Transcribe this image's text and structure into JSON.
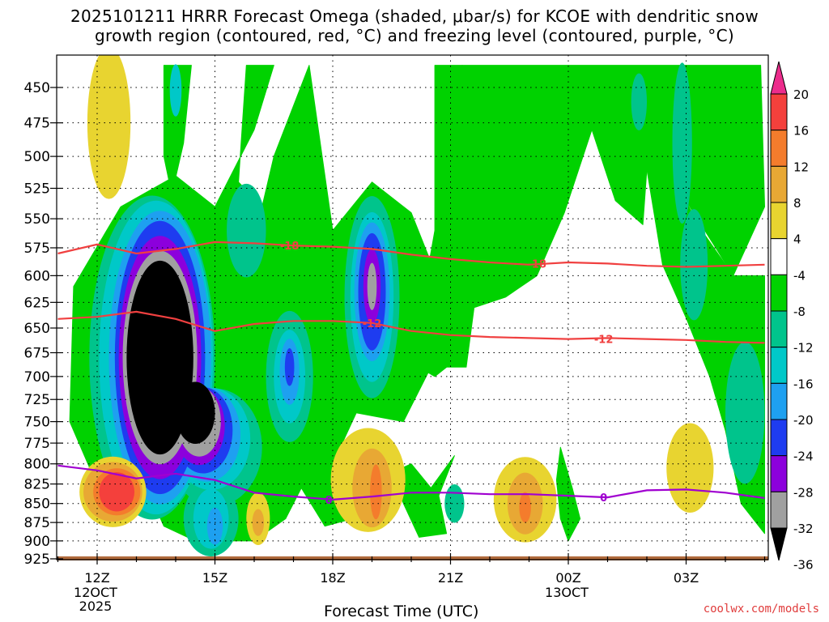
{
  "title": "2025101211 HRRR Forecast Omega (shaded, μbar/s) for KCOE with dendritic snow",
  "subtitle": "growth region (contoured, red, °C) and freezing level (contoured, purple, °C)",
  "xlabel": "Forecast Time (UTC)",
  "credit": "coolwx.com/models",
  "chart_data": {
    "type": "heatmap",
    "title": "2025101211 HRRR Forecast Omega (shaded, μbar/s) for KCOE with dendritic snow growth region (contoured, red, °C) and freezing level (contoured, purple, °C)",
    "xlabel": "Forecast Time (UTC)",
    "ylabel": "",
    "y_axis": {
      "reversed": true,
      "ylim": [
        925,
        435
      ],
      "ticks": [
        450,
        475,
        500,
        525,
        550,
        575,
        600,
        625,
        650,
        675,
        700,
        725,
        750,
        775,
        800,
        825,
        850,
        875,
        900,
        925
      ]
    },
    "x_axis": {
      "xlim_hours": [
        11,
        29
      ],
      "ticks": [
        {
          "hour": 12,
          "label": "12Z",
          "sub": [
            "12OCT",
            "2025"
          ]
        },
        {
          "hour": 15,
          "label": "15Z",
          "sub": []
        },
        {
          "hour": 18,
          "label": "18Z",
          "sub": []
        },
        {
          "hour": 21,
          "label": "21Z",
          "sub": []
        },
        {
          "hour": 24,
          "label": "00Z",
          "sub": [
            "13OCT"
          ]
        },
        {
          "hour": 27,
          "label": "03Z",
          "sub": []
        }
      ]
    },
    "grid": "dotted",
    "colorbar": {
      "labels": [
        "20",
        "16",
        "12",
        "8",
        "4",
        "-4",
        "-8",
        "-12",
        "-16",
        "-20",
        "-24",
        "-28",
        "-32",
        "-36"
      ],
      "colors": [
        "#ec2c8c",
        "#f4403c",
        "#f47c2c",
        "#e8a834",
        "#e8d430",
        "#ffffff",
        "#00d200",
        "#00c48c",
        "#00c8c8",
        "#1ea0f0",
        "#1e3cf0",
        "#8c00dc",
        "#a0a0a0",
        "#000000"
      ]
    },
    "omega_fields": [
      {
        "level": -36,
        "color": "#000000",
        "centers": [
          {
            "t": 13.6,
            "p": 680,
            "dt": 0.85,
            "dp": 100
          },
          {
            "t": 14.5,
            "p": 740,
            "dt": 0.5,
            "dp": 35
          }
        ]
      },
      {
        "level": -32,
        "color": "#a0a0a0",
        "centers": [
          {
            "t": 13.6,
            "p": 680,
            "dt": 0.95,
            "dp": 110
          },
          {
            "t": 14.6,
            "p": 750,
            "dt": 0.55,
            "dp": 40
          },
          {
            "t": 19.0,
            "p": 610,
            "dt": 0.12,
            "dp": 22
          }
        ]
      },
      {
        "level": -28,
        "color": "#8c00dc",
        "centers": [
          {
            "t": 13.6,
            "p": 680,
            "dt": 1.05,
            "dp": 125
          },
          {
            "t": 14.6,
            "p": 755,
            "dt": 0.65,
            "dp": 45
          },
          {
            "t": 19.0,
            "p": 610,
            "dt": 0.22,
            "dp": 35
          }
        ]
      },
      {
        "level": -24,
        "color": "#1e3cf0",
        "centers": [
          {
            "t": 13.6,
            "p": 680,
            "dt": 1.15,
            "dp": 140
          },
          {
            "t": 14.7,
            "p": 760,
            "dt": 0.75,
            "dp": 50
          },
          {
            "t": 19.0,
            "p": 615,
            "dt": 0.35,
            "dp": 55
          },
          {
            "t": 16.9,
            "p": 690,
            "dt": 0.12,
            "dp": 20
          }
        ]
      },
      {
        "level": -20,
        "color": "#1ea0f0",
        "centers": [
          {
            "t": 13.6,
            "p": 680,
            "dt": 1.3,
            "dp": 150
          },
          {
            "t": 14.8,
            "p": 765,
            "dt": 0.85,
            "dp": 55
          },
          {
            "t": 19.0,
            "p": 615,
            "dt": 0.45,
            "dp": 65
          },
          {
            "t": 16.9,
            "p": 695,
            "dt": 0.25,
            "dp": 35
          },
          {
            "t": 15.0,
            "p": 880,
            "dt": 0.2,
            "dp": 25
          }
        ]
      },
      {
        "level": -16,
        "color": "#00c8c8",
        "centers": [
          {
            "t": 13.5,
            "p": 680,
            "dt": 1.45,
            "dp": 160
          },
          {
            "t": 14.9,
            "p": 770,
            "dt": 1.0,
            "dp": 60
          },
          {
            "t": 19.0,
            "p": 620,
            "dt": 0.55,
            "dp": 80
          },
          {
            "t": 16.9,
            "p": 700,
            "dt": 0.4,
            "dp": 50
          },
          {
            "t": 14.9,
            "p": 870,
            "dt": 0.45,
            "dp": 40
          },
          {
            "t": 14.0,
            "p": 452,
            "dt": 0.15,
            "dp": 18
          }
        ]
      },
      {
        "level": -12,
        "color": "#00c48c",
        "centers": [
          {
            "t": 13.4,
            "p": 680,
            "dt": 1.6,
            "dp": 165
          },
          {
            "t": 15.0,
            "p": 780,
            "dt": 1.2,
            "dp": 70
          },
          {
            "t": 19.0,
            "p": 620,
            "dt": 0.7,
            "dp": 95
          },
          {
            "t": 16.9,
            "p": 700,
            "dt": 0.6,
            "dp": 70
          },
          {
            "t": 14.9,
            "p": 870,
            "dt": 0.7,
            "dp": 50
          },
          {
            "t": 15.8,
            "p": 560,
            "dt": 0.5,
            "dp": 40
          },
          {
            "t": 27.2,
            "p": 590,
            "dt": 0.35,
            "dp": 50
          },
          {
            "t": 28.5,
            "p": 740,
            "dt": 0.5,
            "dp": 80
          },
          {
            "t": 26.9,
            "p": 490,
            "dt": 0.25,
            "dp": 60
          },
          {
            "t": 21.1,
            "p": 850,
            "dt": 0.25,
            "dp": 25
          },
          {
            "t": 25.8,
            "p": 460,
            "dt": 0.2,
            "dp": 20
          }
        ]
      }
    ],
    "omega_green_polygons": [
      [
        [
          12.2,
          850
        ],
        [
          11.3,
          750
        ],
        [
          11.4,
          610
        ],
        [
          12.6,
          540
        ],
        [
          14.0,
          515
        ],
        [
          15.0,
          540
        ],
        [
          16.0,
          480
        ],
        [
          16.5,
          435
        ],
        [
          15.8,
          435
        ],
        [
          15.6,
          520
        ],
        [
          16.2,
          540
        ],
        [
          16.5,
          500
        ],
        [
          17.4,
          435
        ],
        [
          18.0,
          560
        ],
        [
          19.0,
          520
        ],
        [
          20.0,
          545
        ],
        [
          20.8,
          615
        ],
        [
          20.5,
          690
        ],
        [
          19.8,
          750
        ],
        [
          18.6,
          740
        ],
        [
          18.0,
          800
        ],
        [
          18.4,
          835
        ],
        [
          20.0,
          800
        ],
        [
          20.5,
          830
        ],
        [
          21.1,
          790
        ],
        [
          20.7,
          840
        ],
        [
          20.9,
          890
        ],
        [
          20.2,
          895
        ],
        [
          19.8,
          850
        ],
        [
          19.4,
          800
        ],
        [
          18.9,
          830
        ],
        [
          18.5,
          870
        ],
        [
          17.8,
          880
        ],
        [
          17.2,
          830
        ],
        [
          16.8,
          870
        ],
        [
          16.0,
          900
        ],
        [
          14.5,
          900
        ],
        [
          13.7,
          880
        ],
        [
          13.4,
          845
        ]
      ],
      [
        [
          13.7,
          435
        ],
        [
          13.7,
          500
        ],
        [
          13.9,
          530
        ],
        [
          14.2,
          490
        ],
        [
          14.4,
          435
        ]
      ],
      [
        [
          20.6,
          435
        ],
        [
          21.3,
          435
        ],
        [
          21.6,
          540
        ],
        [
          20.9,
          690
        ],
        [
          20.6,
          700
        ],
        [
          20.2,
          690
        ],
        [
          20.3,
          620
        ],
        [
          20.6,
          560
        ]
      ],
      [
        [
          21.3,
          435
        ],
        [
          28.9,
          435
        ],
        [
          29.0,
          540
        ],
        [
          28.2,
          600
        ],
        [
          26.9,
          530
        ],
        [
          26.5,
          500
        ],
        [
          26.0,
          510
        ],
        [
          25.9,
          555
        ],
        [
          25.2,
          535
        ],
        [
          24.6,
          480
        ],
        [
          23.9,
          545
        ],
        [
          23.2,
          600
        ],
        [
          22.4,
          620
        ],
        [
          21.6,
          630
        ],
        [
          21.4,
          690
        ],
        [
          20.7,
          690
        ],
        [
          21.0,
          640
        ],
        [
          21.1,
          530
        ]
      ],
      [
        [
          26.0,
          510
        ],
        [
          26.5,
          500
        ],
        [
          26.9,
          530
        ],
        [
          27.4,
          560
        ],
        [
          28.2,
          600
        ],
        [
          29.0,
          600
        ],
        [
          29.0,
          890
        ],
        [
          28.4,
          850
        ],
        [
          28.0,
          760
        ],
        [
          27.6,
          700
        ],
        [
          27.0,
          640
        ],
        [
          26.4,
          590
        ]
      ],
      [
        [
          23.8,
          780
        ],
        [
          24.1,
          830
        ],
        [
          24.3,
          870
        ],
        [
          24.0,
          900
        ],
        [
          23.8,
          870
        ],
        [
          23.7,
          820
        ]
      ]
    ],
    "omega_positive": [
      {
        "level": 4,
        "color": "#e8d430",
        "centers": [
          {
            "t": 12.3,
            "p": 475,
            "dt": 0.55,
            "dp": 55
          },
          {
            "t": 12.4,
            "p": 835,
            "dt": 0.85,
            "dp": 45
          },
          {
            "t": 16.1,
            "p": 870,
            "dt": 0.3,
            "dp": 35
          },
          {
            "t": 18.9,
            "p": 820,
            "dt": 0.95,
            "dp": 65
          },
          {
            "t": 22.9,
            "p": 845,
            "dt": 0.8,
            "dp": 55
          },
          {
            "t": 27.1,
            "p": 805,
            "dt": 0.6,
            "dp": 55
          }
        ]
      },
      {
        "level": 8,
        "color": "#e8a834",
        "centers": [
          {
            "t": 12.4,
            "p": 835,
            "dt": 0.75,
            "dp": 38
          },
          {
            "t": 16.1,
            "p": 875,
            "dt": 0.15,
            "dp": 18
          },
          {
            "t": 19.0,
            "p": 830,
            "dt": 0.5,
            "dp": 50
          },
          {
            "t": 22.9,
            "p": 850,
            "dt": 0.45,
            "dp": 40
          }
        ]
      },
      {
        "level": 12,
        "color": "#f47c2c",
        "centers": [
          {
            "t": 12.5,
            "p": 835,
            "dt": 0.6,
            "dp": 30
          },
          {
            "t": 19.1,
            "p": 835,
            "dt": 0.15,
            "dp": 35
          },
          {
            "t": 22.9,
            "p": 855,
            "dt": 0.15,
            "dp": 20
          }
        ]
      },
      {
        "level": 16,
        "color": "#f4403c",
        "centers": [
          {
            "t": 12.5,
            "p": 835,
            "dt": 0.45,
            "dp": 25
          }
        ]
      }
    ],
    "contours": [
      {
        "name": "-18",
        "color": "#f04040",
        "label": "-18",
        "points": [
          [
            11.0,
            580
          ],
          [
            12.0,
            572
          ],
          [
            13.0,
            580
          ],
          [
            14.0,
            576
          ],
          [
            15.0,
            570
          ],
          [
            16.0,
            571
          ],
          [
            17.0,
            573
          ],
          [
            18.0,
            574
          ],
          [
            19.0,
            576
          ],
          [
            20.0,
            581
          ],
          [
            21.0,
            585
          ],
          [
            22.0,
            588
          ],
          [
            23.0,
            590
          ],
          [
            24.0,
            588
          ],
          [
            25.0,
            589
          ],
          [
            26.0,
            591
          ],
          [
            27.0,
            592
          ],
          [
            28.0,
            591
          ],
          [
            29.0,
            590
          ]
        ],
        "label_at": [
          [
            16.9,
            573
          ],
          [
            23.2,
            589
          ]
        ]
      },
      {
        "name": "-12",
        "color": "#f04040",
        "label": "-12",
        "points": [
          [
            11.0,
            641
          ],
          [
            12.0,
            639
          ],
          [
            13.0,
            634
          ],
          [
            14.0,
            641
          ],
          [
            15.0,
            653
          ],
          [
            16.0,
            646
          ],
          [
            17.0,
            643
          ],
          [
            18.0,
            643
          ],
          [
            19.0,
            645
          ],
          [
            20.0,
            653
          ],
          [
            21.0,
            657
          ],
          [
            22.0,
            659
          ],
          [
            23.0,
            660
          ],
          [
            24.0,
            661
          ],
          [
            25.0,
            660
          ],
          [
            26.0,
            661
          ],
          [
            27.0,
            662
          ],
          [
            28.0,
            664
          ],
          [
            29.0,
            665
          ]
        ],
        "label_at": [
          [
            19.0,
            645
          ],
          [
            24.9,
            661
          ]
        ]
      },
      {
        "name": "0",
        "color": "#a000d0",
        "label": "0",
        "points": [
          [
            11.0,
            802
          ],
          [
            12.0,
            808
          ],
          [
            13.0,
            818
          ],
          [
            14.0,
            812
          ],
          [
            15.0,
            820
          ],
          [
            16.0,
            836
          ],
          [
            17.0,
            841
          ],
          [
            18.0,
            845
          ],
          [
            19.0,
            841
          ],
          [
            20.0,
            836
          ],
          [
            21.0,
            836
          ],
          [
            22.0,
            838
          ],
          [
            23.0,
            838
          ],
          [
            24.0,
            840
          ],
          [
            25.0,
            842
          ],
          [
            26.0,
            833
          ],
          [
            27.0,
            832
          ],
          [
            28.0,
            836
          ],
          [
            29.0,
            843
          ]
        ],
        "label_at": [
          [
            17.9,
            845
          ],
          [
            24.9,
            842
          ]
        ]
      }
    ]
  }
}
